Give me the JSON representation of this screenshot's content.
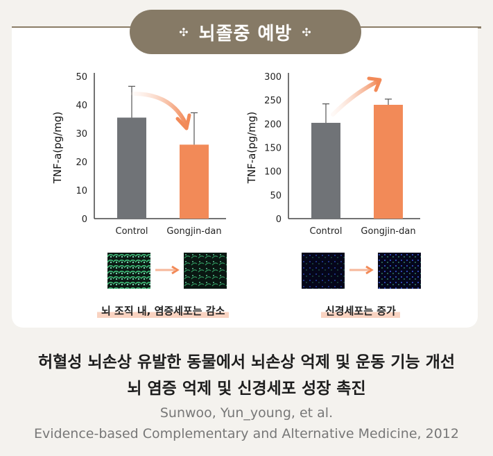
{
  "badge": {
    "title": "뇌졸중 예방",
    "dot_left": "✣",
    "dot_right": "✣"
  },
  "chart_data": [
    {
      "type": "bar",
      "categories": [
        "Control",
        "Gongjin-dan"
      ],
      "values": [
        35.5,
        26
      ],
      "errors": [
        11,
        11.2
      ],
      "ylabel": "TNF-a(pg/mg)",
      "ylim": [
        0,
        50
      ],
      "yticks": [
        0,
        10,
        20,
        30,
        40,
        50
      ],
      "colors": [
        "#707377",
        "#f28a58"
      ],
      "trend": "down"
    },
    {
      "type": "bar",
      "categories": [
        "Control",
        "Gongjin-dan"
      ],
      "values": [
        202,
        240
      ],
      "errors": [
        40,
        12
      ],
      "ylabel": "TNF-a(pg/mg)",
      "ylim": [
        0,
        300
      ],
      "yticks": [
        0,
        50,
        100,
        150,
        200,
        250,
        300
      ],
      "colors": [
        "#707377",
        "#f28a58"
      ],
      "trend": "up"
    }
  ],
  "captions": {
    "left": "뇌 조직 내, 염증세포는 감소",
    "right": "신경세포는 증가"
  },
  "headline": {
    "line1": "허혈성 뇌손상 유발한 동물에서 뇌손상 억제 및 운동 기능 개선",
    "line2": "뇌 염증 억제 및 신경세포 성장 촉진"
  },
  "citation": {
    "authors": "Sunwoo, Yun_young, et al.",
    "journal": "Evidence-based Complementary and Alternative Medicine, 2012"
  },
  "colors": {
    "accent": "#f28a58",
    "badge": "#867a66",
    "control": "#707377"
  }
}
